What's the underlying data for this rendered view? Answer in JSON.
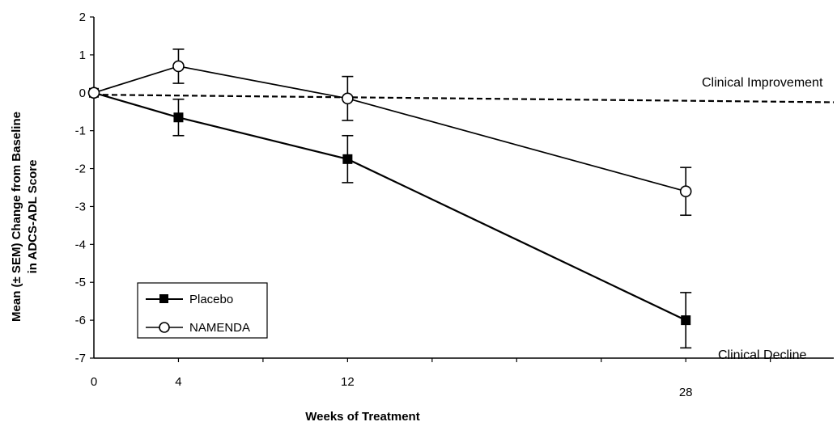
{
  "chart_data": {
    "type": "line",
    "xlabel": "Weeks of Treatment",
    "ylabel_line1": "Mean (± SEM) Change from Baseline",
    "ylabel_line2": "in ADCS-ADL Score",
    "x": [
      0,
      4,
      12,
      28
    ],
    "x_tick_labels": [
      "0",
      "4",
      "12",
      "28"
    ],
    "xlim": [
      0,
      35
    ],
    "ylim": [
      -7,
      2
    ],
    "y_ticks": [
      2,
      1,
      0,
      -1,
      -2,
      -3,
      -4,
      -5,
      -6,
      -7
    ],
    "y_tick_labels": [
      "2",
      "1",
      "0",
      "-1",
      "-2",
      "-3",
      "-4",
      "-5",
      "-6",
      "-7"
    ],
    "grid": false,
    "legend_position": "bottom-left",
    "series": [
      {
        "name": "Placebo",
        "marker": "filled-square",
        "color": "#000000",
        "values": [
          0,
          -0.65,
          -1.75,
          -6.0
        ],
        "sem": [
          0,
          0.48,
          0.62,
          0.73
        ]
      },
      {
        "name": "NAMENDA",
        "marker": "open-circle",
        "color": "#000000",
        "values": [
          0,
          0.7,
          -0.15,
          -2.6
        ],
        "sem": [
          0,
          0.45,
          0.58,
          0.63
        ]
      }
    ],
    "reference_line": {
      "label": "Clinical Improvement",
      "x": [
        0,
        35
      ],
      "y": [
        -0.05,
        -0.25
      ]
    },
    "annotations": {
      "clinical_improvement": "Clinical Improvement",
      "clinical_decline": "Clinical Decline"
    }
  }
}
